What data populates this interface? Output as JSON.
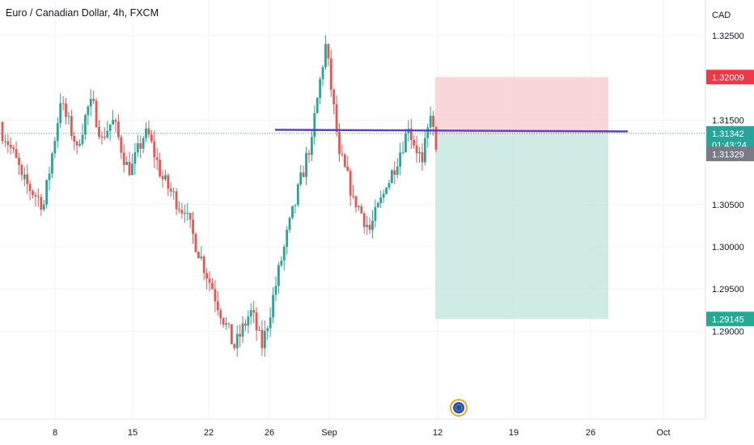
{
  "header": {
    "title": "Euro / Canadian Dollar, 4h, FXCM"
  },
  "colors": {
    "up": "#26a69a",
    "down": "#ef5350",
    "hline": "#5b3fc4",
    "stop_zone": "#f7c9cc",
    "target_zone": "#c7e8e1",
    "current_tag": "#26a69a",
    "stop_tag": "#f23645",
    "entry_tag": "#787b86",
    "target_tag": "#22ab94"
  },
  "chart_data": {
    "type": "candlestick",
    "currency": "CAD",
    "yticks": [
      "1.32500",
      "1.31500",
      "1.30500",
      "1.30000",
      "1.29500",
      "1.29000"
    ],
    "xticks": [
      "8",
      "15",
      "22",
      "26",
      "Sep",
      "12",
      "19",
      "26",
      "Oct"
    ],
    "grid": true,
    "price_tags": {
      "stop": "1.32009",
      "current": "1.31342",
      "countdown": "01:43:24",
      "entry": "1.31329",
      "target": "1.29145"
    },
    "horizontal_line": 1.3138,
    "position": {
      "entry": 1.31329,
      "stop": 1.32009,
      "target": 1.29145,
      "side": "short"
    },
    "segments": [
      [
        1.3148,
        1.3085,
        1.3125,
        1.3068,
        8
      ],
      [
        1.308,
        1.305,
        1.311,
        1.302,
        8
      ],
      [
        1.305,
        1.317,
        1.318,
        1.304,
        6
      ],
      [
        1.317,
        1.312,
        1.3185,
        1.31,
        6
      ],
      [
        1.312,
        1.3175,
        1.327,
        1.311,
        5
      ],
      [
        1.3175,
        1.313,
        1.318,
        1.312,
        4
      ],
      [
        1.313,
        1.315,
        1.319,
        1.3125,
        4
      ],
      [
        1.315,
        1.3085,
        1.3155,
        1.308,
        6
      ],
      [
        1.3085,
        1.314,
        1.316,
        1.308,
        6
      ],
      [
        1.314,
        1.308,
        1.3145,
        1.306,
        6
      ],
      [
        1.308,
        1.304,
        1.3085,
        1.302,
        8
      ],
      [
        1.304,
        1.295,
        1.3045,
        1.293,
        10
      ],
      [
        1.295,
        1.288,
        1.296,
        1.287,
        8
      ],
      [
        1.288,
        1.2925,
        1.2935,
        1.287,
        6
      ],
      [
        1.2925,
        1.288,
        1.2935,
        1.287,
        4
      ],
      [
        1.288,
        1.3,
        1.301,
        1.2875,
        8
      ],
      [
        1.3,
        1.313,
        1.314,
        1.299,
        10
      ],
      [
        1.313,
        1.324,
        1.3245,
        1.308,
        5
      ],
      [
        1.324,
        1.311,
        1.3245,
        1.309,
        5
      ],
      [
        1.311,
        1.306,
        1.3115,
        1.305,
        5
      ],
      [
        1.306,
        1.302,
        1.307,
        1.301,
        6
      ],
      [
        1.302,
        1.307,
        1.3085,
        1.2985,
        6
      ],
      [
        1.307,
        1.314,
        1.315,
        1.306,
        8
      ],
      [
        1.314,
        1.31,
        1.3155,
        1.306,
        5
      ],
      [
        1.31,
        1.3155,
        1.3165,
        1.307,
        3
      ],
      [
        1.3155,
        1.3115,
        1.317,
        1.311,
        2
      ]
    ]
  }
}
